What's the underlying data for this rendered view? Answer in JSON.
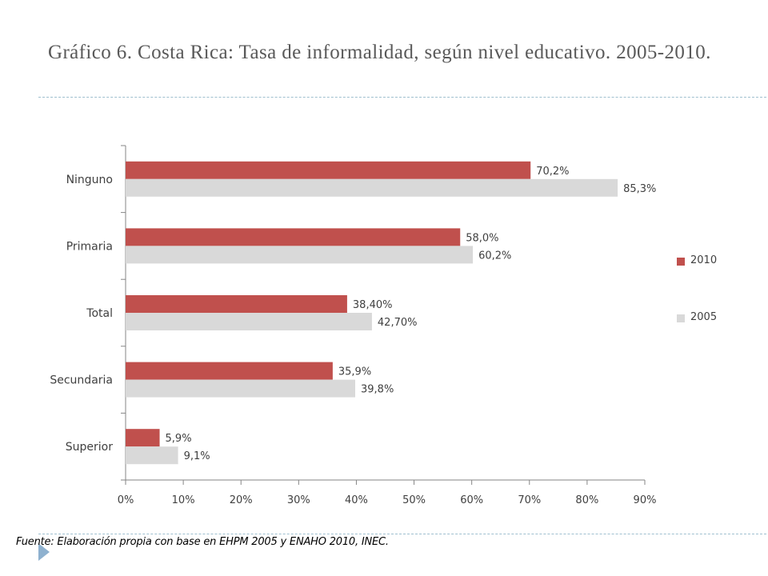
{
  "header": {
    "title": "Gráfico 6. Costa Rica: Tasa de informalidad, según nivel educativo. 2005-2010."
  },
  "footer": {
    "source": "Fuente: Elaboración propia con base en EHPM 2005 y ENAHO 2010, INEC."
  },
  "chart_data": {
    "type": "bar",
    "orientation": "horizontal",
    "categories": [
      "Ninguno",
      "Primaria",
      "Total",
      "Secundaria",
      "Superior"
    ],
    "series": [
      {
        "name": "2010",
        "color": "#c0504d",
        "values": [
          70.2,
          58.0,
          38.4,
          35.9,
          5.9
        ],
        "labels": [
          "70,2%",
          "58,0%",
          "38,40%",
          "35,9%",
          "5,9%"
        ]
      },
      {
        "name": "2005",
        "color": "#d9d9d9",
        "values": [
          85.3,
          60.2,
          42.7,
          39.8,
          9.1
        ],
        "labels": [
          "85,3%",
          "60,2%",
          "42,70%",
          "39,8%",
          "9,1%"
        ]
      }
    ],
    "xlim": [
      0,
      90
    ],
    "x_ticks": [
      "0%",
      "10%",
      "20%",
      "30%",
      "40%",
      "50%",
      "60%",
      "70%",
      "80%",
      "90%"
    ],
    "grid": false,
    "legend_position": "right"
  }
}
